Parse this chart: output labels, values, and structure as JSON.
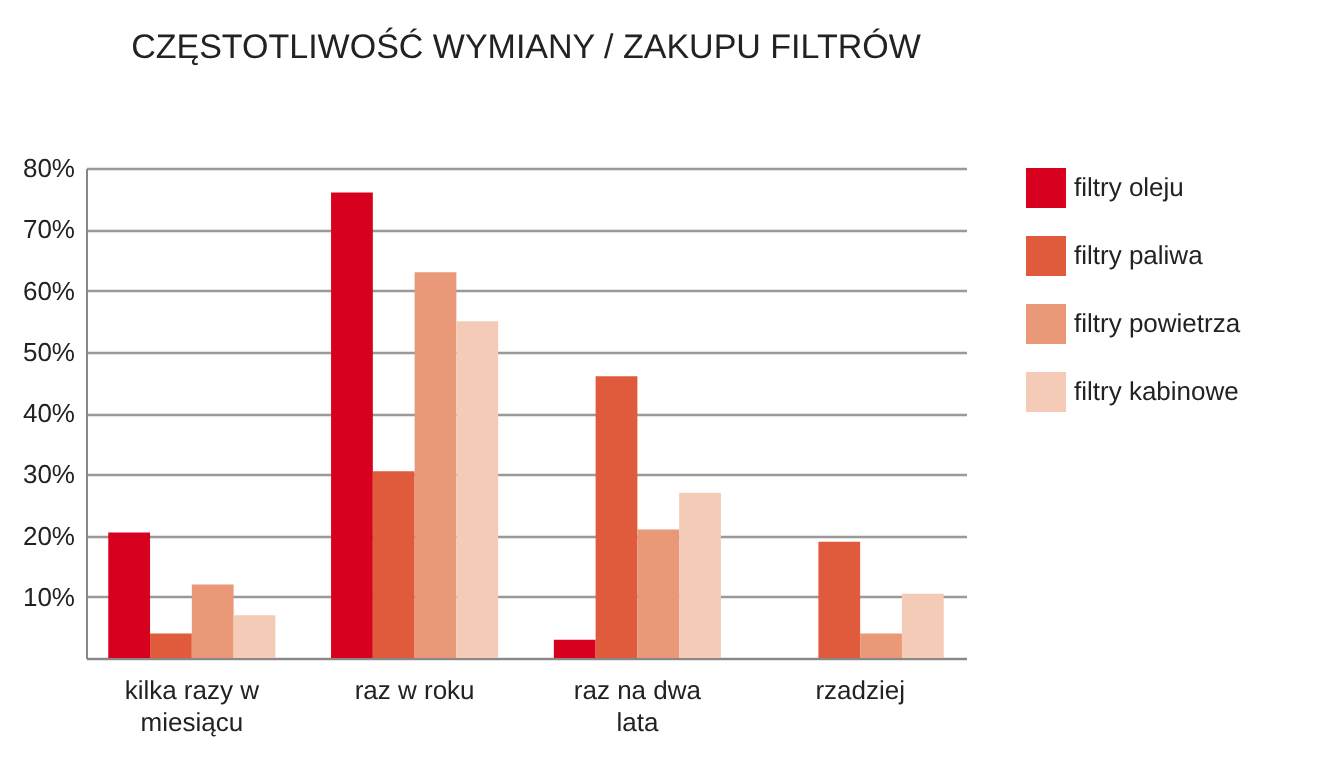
{
  "chart_data": {
    "type": "bar",
    "title": "CZĘSTOTLIWOŚĆ WYMIANY / ZAKUPU FILTRÓW",
    "categories": [
      "kilka razy w miesiącu",
      "raz w roku",
      "raz na dwa lata",
      "rzadziej"
    ],
    "series": [
      {
        "name": "filtry oleju",
        "color": "#d7001e",
        "values": [
          20.5,
          76,
          3,
          0
        ]
      },
      {
        "name": "filtry paliwa",
        "color": "#e05a3c",
        "values": [
          4,
          30.5,
          46,
          19
        ]
      },
      {
        "name": "filtry powietrza",
        "color": "#e99878",
        "values": [
          12,
          63,
          21,
          4
        ]
      },
      {
        "name": "filtry kabinowe",
        "color": "#f3cbb6",
        "values": [
          7,
          55,
          27,
          10.5
        ]
      }
    ],
    "ylim": [
      0,
      80
    ],
    "yticks": [
      {
        "value": 0,
        "label": null
      },
      {
        "value": 10,
        "label": "10%"
      },
      {
        "value": 20,
        "label": "20%"
      },
      {
        "value": 30,
        "label": "30%"
      },
      {
        "value": 40,
        "label": "40%"
      },
      {
        "value": 50,
        "label": "50%"
      },
      {
        "value": 60,
        "label": "60%"
      },
      {
        "value": 70,
        "label": "70%"
      },
      {
        "value": 80,
        "label": "80%"
      }
    ],
    "grid": "y",
    "legend": "top right"
  }
}
